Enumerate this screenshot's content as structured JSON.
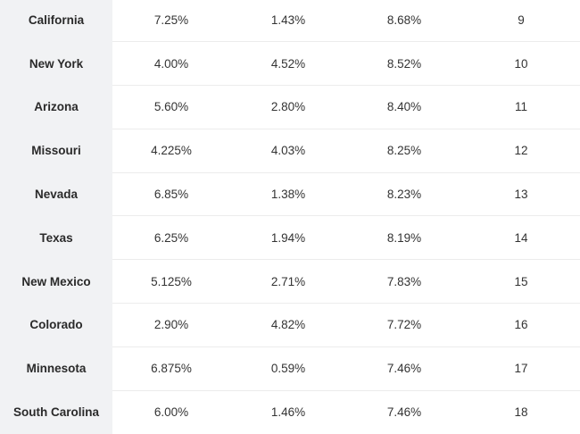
{
  "rows": [
    {
      "state": "California",
      "state_rate": "7.25%",
      "avg_local_rate": "1.43%",
      "combined_rate": "8.68%",
      "rank": "9"
    },
    {
      "state": "New York",
      "state_rate": "4.00%",
      "avg_local_rate": "4.52%",
      "combined_rate": "8.52%",
      "rank": "10"
    },
    {
      "state": "Arizona",
      "state_rate": "5.60%",
      "avg_local_rate": "2.80%",
      "combined_rate": "8.40%",
      "rank": "11"
    },
    {
      "state": "Missouri",
      "state_rate": "4.225%",
      "avg_local_rate": "4.03%",
      "combined_rate": "8.25%",
      "rank": "12"
    },
    {
      "state": "Nevada",
      "state_rate": "6.85%",
      "avg_local_rate": "1.38%",
      "combined_rate": "8.23%",
      "rank": "13"
    },
    {
      "state": "Texas",
      "state_rate": "6.25%",
      "avg_local_rate": "1.94%",
      "combined_rate": "8.19%",
      "rank": "14"
    },
    {
      "state": "New Mexico",
      "state_rate": "5.125%",
      "avg_local_rate": "2.71%",
      "combined_rate": "7.83%",
      "rank": "15"
    },
    {
      "state": "Colorado",
      "state_rate": "2.90%",
      "avg_local_rate": "4.82%",
      "combined_rate": "7.72%",
      "rank": "16"
    },
    {
      "state": "Minnesota",
      "state_rate": "6.875%",
      "avg_local_rate": "0.59%",
      "combined_rate": "7.46%",
      "rank": "17"
    },
    {
      "state": "South Carolina",
      "state_rate": "6.00%",
      "avg_local_rate": "1.46%",
      "combined_rate": "7.46%",
      "rank": "18"
    }
  ]
}
